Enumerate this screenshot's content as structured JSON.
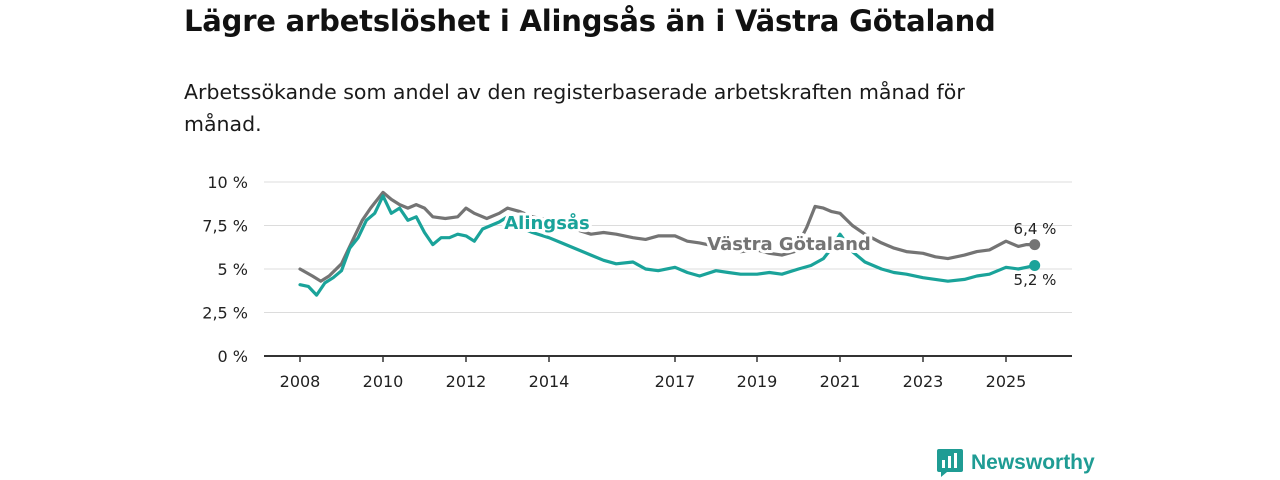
{
  "title": "Lägre arbetslöshet i Alingsås än i Västra Götaland",
  "subtitle": "Arbetssökande som andel av den registerbaserade arbetskraften månad för månad.",
  "logo": {
    "text": "Newsworthy"
  },
  "colors": {
    "alingsas": "#1aa39a",
    "vastra_gotaland": "#747474",
    "grid": "#dcdcdc",
    "axis": "#333333",
    "brand": "#1f9c94"
  },
  "chart_data": {
    "type": "line",
    "title": "Lägre arbetslöshet i Alingsås än i Västra Götaland",
    "xlabel": "",
    "ylabel": "",
    "xlim": [
      2008.0,
      2025.8
    ],
    "ylim": [
      0,
      10
    ],
    "y_ticks": [
      {
        "value": 0,
        "label": "0 %"
      },
      {
        "value": 2.5,
        "label": "2,5 %"
      },
      {
        "value": 5,
        "label": "5 %"
      },
      {
        "value": 7.5,
        "label": "7,5 %"
      },
      {
        "value": 10,
        "label": "10 %"
      }
    ],
    "x_ticks": [
      {
        "value": 2008,
        "label": "2008"
      },
      {
        "value": 2010,
        "label": "2010"
      },
      {
        "value": 2012,
        "label": "2012"
      },
      {
        "value": 2014,
        "label": "2014"
      },
      {
        "value": 2017,
        "label": "2017"
      },
      {
        "value": 2019,
        "label": "2019"
      },
      {
        "value": 2021,
        "label": "2021"
      },
      {
        "value": 2023,
        "label": "2023"
      },
      {
        "value": 2025,
        "label": "2025"
      }
    ],
    "series": [
      {
        "name": "Västra Götaland",
        "color": "#747474",
        "x": [
          2008.0,
          2008.3,
          2008.5,
          2008.7,
          2009.0,
          2009.3,
          2009.5,
          2009.7,
          2010.0,
          2010.2,
          2010.4,
          2010.6,
          2010.8,
          2011.0,
          2011.2,
          2011.5,
          2011.8,
          2012.0,
          2012.2,
          2012.5,
          2012.8,
          2013.0,
          2013.3,
          2013.6,
          2014.0,
          2014.3,
          2014.6,
          2015.0,
          2015.3,
          2015.6,
          2016.0,
          2016.3,
          2016.6,
          2017.0,
          2017.3,
          2017.6,
          2018.0,
          2018.3,
          2018.6,
          2019.0,
          2019.3,
          2019.6,
          2019.9,
          2020.2,
          2020.4,
          2020.6,
          2020.8,
          2021.0,
          2021.3,
          2021.6,
          2022.0,
          2022.3,
          2022.6,
          2023.0,
          2023.3,
          2023.6,
          2024.0,
          2024.3,
          2024.6,
          2025.0,
          2025.3,
          2025.5,
          2025.7
        ],
        "y": [
          5.0,
          4.6,
          4.3,
          4.6,
          5.3,
          6.8,
          7.8,
          8.5,
          9.4,
          9.0,
          8.7,
          8.5,
          8.7,
          8.5,
          8.0,
          7.9,
          8.0,
          8.5,
          8.2,
          7.9,
          8.2,
          8.5,
          8.3,
          8.0,
          7.8,
          7.6,
          7.3,
          7.0,
          7.1,
          7.0,
          6.8,
          6.7,
          6.9,
          6.9,
          6.6,
          6.5,
          6.3,
          6.2,
          6.0,
          6.1,
          5.9,
          5.8,
          6.0,
          7.4,
          8.6,
          8.5,
          8.3,
          8.2,
          7.5,
          7.0,
          6.5,
          6.2,
          6.0,
          5.9,
          5.7,
          5.6,
          5.8,
          6.0,
          6.1,
          6.6,
          6.3,
          6.4,
          6.4
        ]
      },
      {
        "name": "Alingsås",
        "color": "#1aa39a",
        "x": [
          2008.0,
          2008.2,
          2008.4,
          2008.6,
          2008.8,
          2009.0,
          2009.2,
          2009.4,
          2009.6,
          2009.8,
          2010.0,
          2010.2,
          2010.4,
          2010.6,
          2010.8,
          2011.0,
          2011.2,
          2011.4,
          2011.6,
          2011.8,
          2012.0,
          2012.2,
          2012.4,
          2012.6,
          2012.8,
          2013.0,
          2013.3,
          2013.6,
          2014.0,
          2014.3,
          2014.6,
          2015.0,
          2015.3,
          2015.6,
          2016.0,
          2016.3,
          2016.6,
          2017.0,
          2017.3,
          2017.6,
          2018.0,
          2018.3,
          2018.6,
          2019.0,
          2019.3,
          2019.6,
          2020.0,
          2020.3,
          2020.6,
          2020.8,
          2021.0,
          2021.3,
          2021.6,
          2022.0,
          2022.3,
          2022.6,
          2023.0,
          2023.3,
          2023.6,
          2024.0,
          2024.3,
          2024.6,
          2025.0,
          2025.3,
          2025.5,
          2025.7
        ],
        "y": [
          4.1,
          4.0,
          3.5,
          4.2,
          4.5,
          4.9,
          6.2,
          6.8,
          7.8,
          8.2,
          9.2,
          8.2,
          8.5,
          7.8,
          8.0,
          7.1,
          6.4,
          6.8,
          6.8,
          7.0,
          6.9,
          6.6,
          7.3,
          7.5,
          7.7,
          8.0,
          7.4,
          7.1,
          6.8,
          6.5,
          6.2,
          5.8,
          5.5,
          5.3,
          5.4,
          5.0,
          4.9,
          5.1,
          4.8,
          4.6,
          4.9,
          4.8,
          4.7,
          4.7,
          4.8,
          4.7,
          5.0,
          5.2,
          5.6,
          6.2,
          7.0,
          6.0,
          5.4,
          5.0,
          4.8,
          4.7,
          4.5,
          4.4,
          4.3,
          4.4,
          4.6,
          4.7,
          5.1,
          5.0,
          5.1,
          5.2
        ]
      }
    ],
    "annotations": [
      {
        "series": "Alingsås",
        "text": "Alingsås"
      },
      {
        "series": "Västra Götaland",
        "text": "Västra Götaland"
      },
      {
        "series": "Västra Götaland",
        "text": "6,4 %"
      },
      {
        "series": "Alingsås",
        "text": "5,2 %"
      }
    ]
  }
}
